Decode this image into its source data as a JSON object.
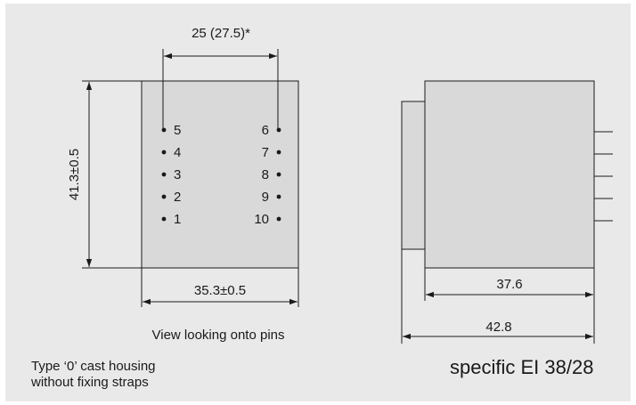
{
  "colors": {
    "background": "#e9e9e9",
    "housing": "#d9d9d9",
    "line": "#1a1a1a"
  },
  "front_view": {
    "width_dim": "35.3±0.5",
    "height_dim": "41.3±0.5",
    "pin_pitch_dim": "25 (27.5)*",
    "caption": "View looking onto pins",
    "left_pins": [
      "5",
      "4",
      "3",
      "2",
      "1"
    ],
    "right_pins": [
      "6",
      "7",
      "8",
      "9",
      "10"
    ]
  },
  "side_view": {
    "body_dim": "37.6",
    "overall_dim": "42.8"
  },
  "notes": {
    "housing_type": "Type ‘0’ cast housing\nwithout fixing straps",
    "model": "specific EI 38/28"
  }
}
